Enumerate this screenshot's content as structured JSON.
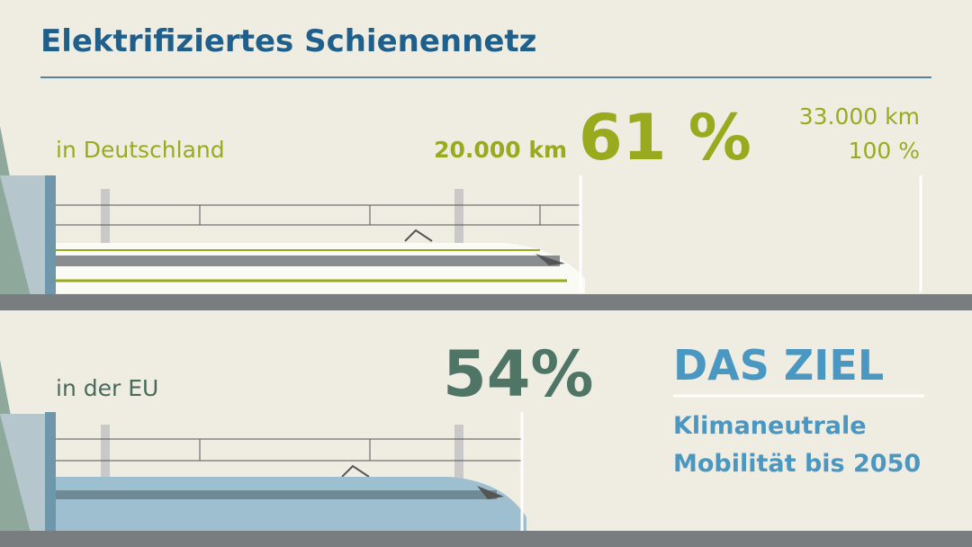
{
  "header": {
    "title": "Elektrifiziertes Schienennetz"
  },
  "germany": {
    "label": "in Deutschland",
    "km": "20.000 km",
    "percent": "61 %",
    "total_km": "33.000 km",
    "total_percent": "100 %"
  },
  "eu": {
    "label": "in der EU",
    "percent": "54%"
  },
  "goal": {
    "heading": "DAS ZIEL",
    "lines": [
      "Klimaneutrale",
      "Mobilität bis 2050"
    ]
  }
}
